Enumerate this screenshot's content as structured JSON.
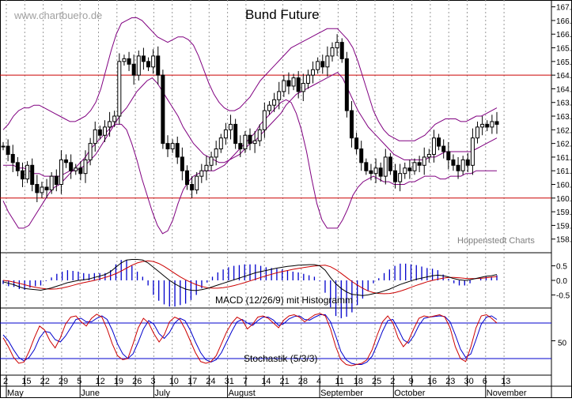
{
  "watermark": "www.chartbuero.de",
  "credit": "Hoppenstedt Charts",
  "colors": {
    "candle": "#000000",
    "bollinger": "#800080",
    "support_resistance": "#cc0000",
    "macd_line": "#000000",
    "signal_line": "#cc0000",
    "histogram": "#0000cc",
    "stoch_k": "#cc0000",
    "stoch_d": "#0000cc",
    "stoch_band": "#0000cc",
    "grid": "#999999"
  },
  "chart_data": [
    {
      "type": "candlestick",
      "title": "Bund Future",
      "yticks": [
        "167.0",
        "166.5",
        "166.0",
        "165.5",
        "165.0",
        "164.5",
        "164.0",
        "163.5",
        "163.0",
        "162.5",
        "162.0",
        "161.5",
        "161.0",
        "160.5",
        "160.0",
        "159.5",
        "159.0",
        "158.5"
      ],
      "ylim": [
        158.0,
        167.25
      ],
      "horizontal_lines": [
        164.5,
        160.0
      ],
      "close": [
        161.9,
        161.6,
        161.3,
        161.0,
        160.7,
        161.2,
        160.5,
        160.2,
        160.4,
        160.3,
        160.8,
        160.5,
        161.4,
        161.3,
        161.0,
        161.1,
        160.9,
        161.4,
        162.0,
        162.5,
        162.3,
        162.6,
        162.8,
        163.0,
        165.0,
        165.1,
        164.9,
        164.5,
        165.2,
        165.0,
        164.8,
        165.2,
        164.5,
        162.0,
        161.8,
        162.0,
        161.5,
        161.0,
        160.5,
        160.3,
        160.8,
        161.0,
        161.2,
        161.5,
        161.8,
        162.2,
        162.5,
        162.7,
        162.0,
        161.8,
        162.3,
        162.0,
        162.1,
        162.5,
        163.2,
        163.4,
        163.6,
        163.9,
        164.3,
        164.1,
        164.4,
        163.9,
        164.2,
        164.5,
        164.7,
        165.0,
        164.8,
        165.2,
        165.5,
        165.7,
        165.1,
        163.2,
        162.2,
        161.8,
        161.3,
        161.0,
        160.9,
        161.1,
        160.8,
        161.5,
        161.0,
        160.6,
        160.9,
        161.1,
        161.0,
        161.3,
        161.2,
        161.5,
        161.6,
        162.2,
        161.9,
        161.7,
        161.4,
        161.2,
        161.0,
        161.4,
        161.2,
        162.2,
        162.6,
        162.7,
        162.6,
        162.8,
        162.7
      ],
      "bollinger": {
        "upper": [
          162.5,
          162.7,
          163.0,
          163.2,
          163.3,
          163.3,
          163.4,
          163.4,
          163.3,
          163.2,
          163.1,
          163.0,
          162.9,
          162.8,
          162.8,
          162.9,
          163.0,
          163.2,
          163.5,
          164.0,
          164.7,
          165.4,
          166.0,
          166.4,
          166.5,
          166.6,
          166.6,
          166.5,
          166.3,
          166.1,
          165.9,
          165.8,
          165.7,
          165.8,
          165.9,
          165.9,
          165.8,
          165.6,
          165.2,
          164.7,
          164.2,
          163.8,
          163.5,
          163.3,
          163.2,
          163.2,
          163.3,
          163.5,
          163.7,
          164.0,
          164.3,
          164.5,
          164.7,
          164.9,
          165.1,
          165.3,
          165.5,
          165.6,
          165.7,
          165.8,
          165.9,
          166.0,
          166.1,
          166.2,
          166.2,
          166.2,
          166.0,
          165.8,
          165.5,
          165.0,
          164.4,
          163.8,
          163.2,
          162.8,
          162.5,
          162.3,
          162.2,
          162.1,
          162.1,
          162.1,
          162.1,
          162.2,
          162.3,
          162.5,
          162.7,
          162.8,
          162.9,
          162.9,
          162.9,
          162.8,
          162.8,
          162.9,
          163.0,
          163.0,
          163.1,
          163.2,
          163.3
        ],
        "middle": [
          161.2,
          161.2,
          161.2,
          161.1,
          161.1,
          161.0,
          160.9,
          160.9,
          160.8,
          160.8,
          160.8,
          160.8,
          160.9,
          161.0,
          161.0,
          161.1,
          161.2,
          161.4,
          161.6,
          161.9,
          162.2,
          162.5,
          162.8,
          163.1,
          163.3,
          163.6,
          163.9,
          164.1,
          164.3,
          164.4,
          164.2,
          163.9,
          163.6,
          163.3,
          163.0,
          162.6,
          162.3,
          162.0,
          161.8,
          161.6,
          161.5,
          161.4,
          161.3,
          161.3,
          161.4,
          161.5,
          161.6,
          161.8,
          162.0,
          162.1,
          162.3,
          162.5,
          162.7,
          162.9,
          163.1,
          163.4,
          163.6,
          163.8,
          163.9,
          164.0,
          164.1,
          164.2,
          164.3,
          164.4,
          164.5,
          164.6,
          164.4,
          164.0,
          163.6,
          163.2,
          162.9,
          162.6,
          162.4,
          162.2,
          162.0,
          161.8,
          161.6,
          161.5,
          161.4,
          161.4,
          161.4,
          161.4,
          161.4,
          161.5,
          161.5,
          161.6,
          161.7,
          161.7,
          161.7,
          161.7,
          161.7,
          161.7,
          161.8,
          161.9,
          162.0,
          162.1,
          162.2
        ],
        "lower": [
          159.9,
          159.5,
          159.2,
          158.9,
          158.9,
          159.0,
          159.3,
          159.6,
          159.9,
          160.2,
          160.4,
          160.5,
          160.7,
          160.9,
          161.1,
          161.3,
          161.5,
          161.8,
          162.0,
          162.2,
          162.4,
          162.6,
          162.7,
          162.7,
          162.5,
          162.0,
          161.4,
          160.7,
          160.1,
          159.5,
          159.0,
          158.7,
          158.8,
          159.2,
          159.8,
          160.3,
          160.6,
          160.8,
          160.9,
          161.0,
          161.0,
          161.0,
          161.1,
          161.2,
          161.4,
          161.6,
          161.8,
          162.0,
          162.2,
          162.4,
          162.7,
          162.9,
          163.1,
          163.3,
          163.5,
          163.6,
          163.5,
          163.1,
          162.5,
          161.7,
          160.7,
          159.8,
          159.2,
          158.9,
          158.9,
          158.9,
          159.2,
          159.6,
          160.1,
          160.4,
          160.6,
          160.7,
          160.8,
          160.7,
          160.6,
          160.6,
          160.5,
          160.5,
          160.5,
          160.6,
          160.6,
          160.7,
          160.8,
          160.8,
          160.8,
          160.7,
          160.7,
          160.8,
          160.8,
          160.8,
          160.9,
          160.9,
          161.0,
          161.0,
          161.0,
          161.0,
          161.0
        ]
      }
    },
    {
      "type": "line",
      "label": "MACD (12/26/9) mit Histogramm",
      "yticks": [
        "0.5",
        "0.0",
        "-0.5"
      ],
      "ylim": [
        -0.95,
        0.95
      ],
      "macd": [
        -0.05,
        -0.1,
        -0.15,
        -0.22,
        -0.28,
        -0.3,
        -0.32,
        -0.34,
        -0.3,
        -0.26,
        -0.2,
        -0.14,
        -0.08,
        -0.04,
        0.0,
        0.02,
        0.05,
        0.1,
        0.15,
        0.2,
        0.3,
        0.45,
        0.6,
        0.7,
        0.72,
        0.72,
        0.7,
        0.6,
        0.45,
        0.3,
        0.15,
        0.0,
        -0.12,
        -0.22,
        -0.3,
        -0.34,
        -0.35,
        -0.32,
        -0.28,
        -0.22,
        -0.16,
        -0.1,
        -0.04,
        0.02,
        0.08,
        0.14,
        0.2,
        0.26,
        0.3,
        0.34,
        0.38,
        0.42,
        0.45,
        0.48,
        0.5,
        0.52,
        0.53,
        0.54,
        0.54,
        0.5,
        0.35,
        0.1,
        -0.12,
        -0.28,
        -0.4,
        -0.48,
        -0.5,
        -0.52,
        -0.5,
        -0.46,
        -0.42,
        -0.36,
        -0.3,
        -0.22,
        -0.14,
        -0.08,
        -0.02,
        0.04,
        0.08,
        0.12,
        0.16,
        0.18,
        0.16,
        0.12,
        0.06,
        0.02,
        0.0,
        0.02,
        0.06,
        0.1,
        0.14,
        0.16,
        0.2
      ],
      "signal": [
        0.0,
        -0.02,
        -0.06,
        -0.1,
        -0.15,
        -0.2,
        -0.24,
        -0.27,
        -0.29,
        -0.3,
        -0.29,
        -0.26,
        -0.22,
        -0.17,
        -0.12,
        -0.08,
        -0.04,
        0.0,
        0.05,
        0.1,
        0.16,
        0.23,
        0.32,
        0.42,
        0.52,
        0.6,
        0.65,
        0.67,
        0.65,
        0.58,
        0.48,
        0.36,
        0.24,
        0.12,
        0.02,
        -0.07,
        -0.15,
        -0.21,
        -0.25,
        -0.27,
        -0.27,
        -0.25,
        -0.22,
        -0.18,
        -0.13,
        -0.08,
        -0.02,
        0.04,
        0.1,
        0.16,
        0.21,
        0.26,
        0.3,
        0.34,
        0.38,
        0.41,
        0.44,
        0.47,
        0.49,
        0.51,
        0.52,
        0.47,
        0.37,
        0.24,
        0.1,
        -0.04,
        -0.16,
        -0.27,
        -0.36,
        -0.42,
        -0.45,
        -0.46,
        -0.45,
        -0.42,
        -0.37,
        -0.31,
        -0.24,
        -0.17,
        -0.11,
        -0.05,
        0.0,
        0.04,
        0.08,
        0.1,
        0.1,
        0.09,
        0.07,
        0.06,
        0.06,
        0.07,
        0.09,
        0.11,
        0.13
      ]
    },
    {
      "type": "line",
      "label": "Stochastik (5/3/3)",
      "yticks": [
        "50"
      ],
      "ylim": [
        0,
        100
      ],
      "bands": [
        80,
        20
      ],
      "k": [
        55,
        40,
        22,
        12,
        14,
        32,
        55,
        75,
        68,
        50,
        38,
        55,
        78,
        90,
        92,
        82,
        75,
        88,
        95,
        90,
        70,
        45,
        25,
        18,
        20,
        45,
        72,
        88,
        80,
        62,
        48,
        60,
        82,
        90,
        86,
        70,
        50,
        30,
        15,
        12,
        15,
        25,
        45,
        65,
        80,
        90,
        85,
        70,
        78,
        90,
        92,
        88,
        80,
        72,
        85,
        92,
        94,
        90,
        82,
        88,
        94,
        96,
        92,
        70,
        40,
        18,
        10,
        8,
        10,
        12,
        18,
        35,
        60,
        82,
        92,
        80,
        55,
        40,
        50,
        70,
        88,
        92,
        90,
        92,
        94,
        90,
        72,
        40,
        20,
        15,
        40,
        72,
        92,
        94,
        88,
        80
      ],
      "d": [
        60,
        50,
        35,
        22,
        16,
        22,
        35,
        55,
        66,
        64,
        52,
        48,
        58,
        72,
        86,
        88,
        82,
        82,
        88,
        92,
        86,
        68,
        45,
        28,
        20,
        28,
        48,
        70,
        84,
        78,
        62,
        54,
        64,
        80,
        88,
        84,
        68,
        48,
        30,
        18,
        14,
        18,
        30,
        48,
        66,
        82,
        86,
        80,
        76,
        84,
        90,
        90,
        85,
        76,
        79,
        87,
        91,
        92,
        86,
        85,
        90,
        94,
        94,
        82,
        58,
        32,
        18,
        12,
        10,
        10,
        14,
        24,
        44,
        66,
        84,
        86,
        70,
        52,
        46,
        58,
        76,
        88,
        90,
        91,
        92,
        91,
        82,
        60,
        36,
        22,
        28,
        52,
        78,
        90,
        92,
        86
      ]
    }
  ],
  "x_axis": {
    "labels": [
      "2",
      "15",
      "22",
      "29",
      "5",
      "12",
      "19",
      "26",
      "3",
      "10",
      "17",
      "24",
      "31",
      "7",
      "14",
      "21",
      "28",
      "4",
      "11",
      "18",
      "25",
      "2",
      "9",
      "16",
      "23",
      "30",
      "6",
      "13"
    ],
    "months": [
      "May",
      "June",
      "July",
      "August",
      "September",
      "October",
      "November"
    ]
  }
}
